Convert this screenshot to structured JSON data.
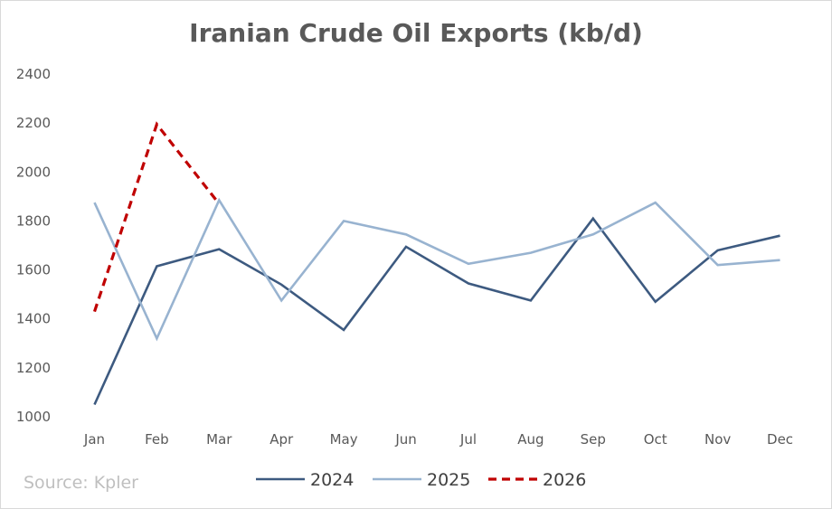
{
  "chart_data": {
    "type": "line",
    "title": "Iranian Crude Oil Exports (kb/d)",
    "categories": [
      "Jan",
      "Feb",
      "Mar",
      "Apr",
      "May",
      "Jun",
      "Jul",
      "Aug",
      "Sep",
      "Oct",
      "Nov",
      "Dec"
    ],
    "yticks": [
      "1000",
      "1200",
      "1400",
      "1600",
      "1800",
      "2000",
      "2200",
      "2400"
    ],
    "ylim": [
      1000,
      2400
    ],
    "grid": false,
    "legend_position": "bottom",
    "series": [
      {
        "name": "2024",
        "color": "#3d5a80",
        "dash": "solid",
        "values": [
          1050,
          1615,
          1685,
          1540,
          1355,
          1695,
          1545,
          1475,
          1810,
          1470,
          1680,
          1740
        ]
      },
      {
        "name": "2025",
        "color": "#98b3d0",
        "dash": "solid",
        "values": [
          1875,
          1320,
          1885,
          1475,
          1800,
          1745,
          1625,
          1670,
          1745,
          1875,
          1620,
          1640
        ]
      },
      {
        "name": "2026",
        "color": "#c00000",
        "dash": "dashed",
        "values": [
          1430,
          2195,
          1870,
          null,
          null,
          null,
          null,
          null,
          null,
          null,
          null,
          null
        ]
      }
    ],
    "source": "Source: Kpler"
  }
}
